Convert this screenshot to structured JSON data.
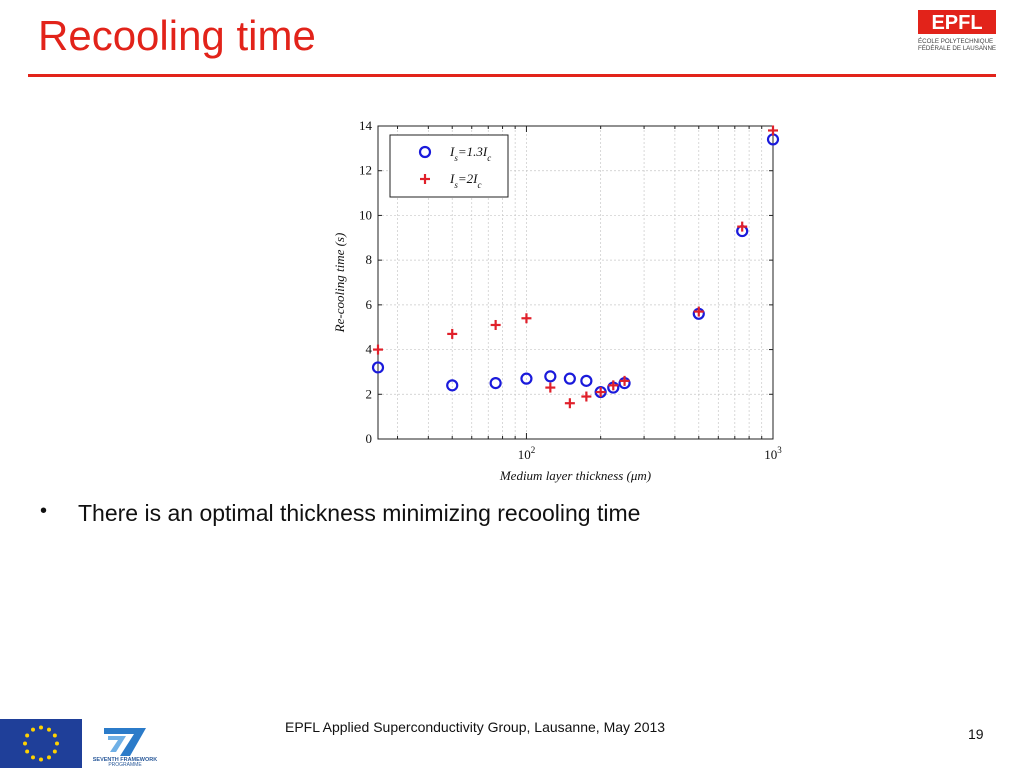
{
  "slide": {
    "title": "Recooling time",
    "bullets": [
      "There is an optimal thickness minimizing recooling time"
    ],
    "footer": "EPFL Applied Superconductivity Group, Lausanne, May 2013",
    "page_number": "19",
    "accent_color": "#e2231a"
  },
  "logo": {
    "name": "EPFL",
    "line1": "ÉCOLE POLYTECHNIQUE",
    "line2": "FÉDÉRALE DE LAUSANNE",
    "icon": "epfl-logo"
  },
  "footer_logos": {
    "eu": "eu-flag-icon",
    "fp7_line1": "SEVENTH FRAMEWORK",
    "fp7_line2": "PROGRAMME"
  },
  "chart_data": {
    "type": "scatter",
    "xlabel": "Medium layer thickness (μm)",
    "ylabel": "Re-cooling time (s)",
    "xscale": "log",
    "xlim": [
      25,
      1000
    ],
    "ylim": [
      0,
      14
    ],
    "yticks": [
      0,
      2,
      4,
      6,
      8,
      10,
      12,
      14
    ],
    "xtick_labels": [
      {
        "value": 100,
        "base": "10",
        "exp": "2"
      },
      {
        "value": 1000,
        "base": "10",
        "exp": "3"
      }
    ],
    "grid": true,
    "legend_position": "top-left",
    "series": [
      {
        "name": "Is=1.3Ic",
        "legend_main": "I",
        "legend_sub1": "s",
        "legend_mid": "=1.3I",
        "legend_sub2": "c",
        "marker": "circle",
        "color": "#1a1adb",
        "x": [
          25,
          50,
          75,
          100,
          125,
          150,
          175,
          200,
          225,
          250,
          500,
          750,
          1000
        ],
        "y": [
          3.2,
          2.4,
          2.5,
          2.7,
          2.8,
          2.7,
          2.6,
          2.1,
          2.3,
          2.5,
          5.6,
          9.3,
          13.4
        ]
      },
      {
        "name": "Is=2Ic",
        "legend_main": "I",
        "legend_sub1": "s",
        "legend_mid": "=2I",
        "legend_sub2": "c",
        "marker": "plus",
        "color": "#e0202a",
        "x": [
          25,
          50,
          75,
          100,
          125,
          150,
          175,
          200,
          225,
          250,
          500,
          750,
          1000
        ],
        "y": [
          4.0,
          4.7,
          5.1,
          5.4,
          2.3,
          1.6,
          1.9,
          2.1,
          2.4,
          2.6,
          5.7,
          9.5,
          13.8
        ]
      }
    ]
  }
}
